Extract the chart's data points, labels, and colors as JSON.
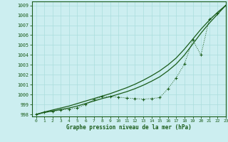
{
  "title": "Graphe pression niveau de la mer (hPa)",
  "bg_color": "#cceef0",
  "grid_color": "#aadddd",
  "line_color": "#1a5c1a",
  "xlim": [
    -0.5,
    23
  ],
  "ylim": [
    997.8,
    1009.4
  ],
  "yticks": [
    998,
    999,
    1000,
    1001,
    1002,
    1003,
    1004,
    1005,
    1006,
    1007,
    1008,
    1009
  ],
  "xticks": [
    0,
    1,
    2,
    3,
    4,
    5,
    6,
    7,
    8,
    9,
    10,
    11,
    12,
    13,
    14,
    15,
    16,
    17,
    18,
    19,
    20,
    21,
    22,
    23
  ],
  "smooth1_x": [
    0,
    1,
    2,
    3,
    4,
    5,
    6,
    7,
    8,
    9,
    10,
    11,
    12,
    13,
    14,
    15,
    16,
    17,
    18,
    19,
    20,
    21,
    22,
    23
  ],
  "smooth1_y": [
    998.0,
    998.2,
    998.35,
    998.5,
    998.65,
    998.85,
    999.1,
    999.35,
    999.6,
    999.8,
    1000.05,
    1000.3,
    1000.6,
    1000.95,
    1001.35,
    1001.8,
    1002.4,
    1003.1,
    1004.0,
    1005.1,
    1006.2,
    1007.2,
    1008.1,
    1009.0
  ],
  "smooth2_x": [
    0,
    1,
    2,
    3,
    4,
    5,
    6,
    7,
    8,
    9,
    10,
    11,
    12,
    13,
    14,
    15,
    16,
    17,
    18,
    19,
    20,
    21,
    22,
    23
  ],
  "smooth2_y": [
    998.0,
    998.25,
    998.45,
    998.65,
    998.85,
    999.1,
    999.35,
    999.6,
    999.85,
    1000.1,
    1000.4,
    1000.7,
    1001.05,
    1001.45,
    1001.9,
    1002.4,
    1003.0,
    1003.7,
    1004.6,
    1005.6,
    1006.6,
    1007.5,
    1008.3,
    1009.0
  ],
  "marker_x": [
    0,
    1,
    2,
    3,
    4,
    5,
    6,
    7,
    8,
    9,
    10,
    11,
    12,
    13,
    14,
    15,
    16,
    17,
    18,
    19,
    20,
    21,
    22,
    23
  ],
  "marker_y": [
    998.0,
    998.2,
    998.3,
    998.45,
    998.55,
    998.65,
    999.0,
    999.5,
    999.8,
    999.8,
    999.75,
    999.65,
    999.6,
    999.55,
    999.6,
    999.7,
    1000.6,
    1001.7,
    1003.1,
    1005.5,
    1004.0,
    1007.6,
    1008.2,
    1009.0
  ]
}
